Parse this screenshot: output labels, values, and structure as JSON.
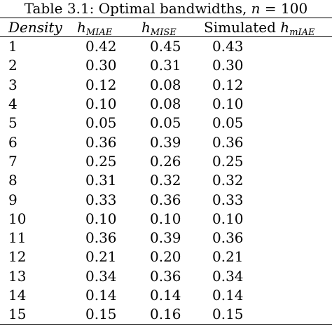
{
  "caption": {
    "prefix": "Table 3.1: Optimal bandwidths, ",
    "n_var": "n",
    "suffix": " = 100"
  },
  "headers": {
    "density": "Density",
    "h_miae_base": "h",
    "h_miae_sub": "MIAE",
    "h_mise_base": "h",
    "h_mise_sub": "MISE",
    "sim_prefix": "Simulated ",
    "sim_base": "h",
    "sim_sub": "mIAE"
  },
  "rows": [
    {
      "density": "1",
      "h_miae": "0.42",
      "h_mise": "0.45",
      "sim_h_miae": "0.43"
    },
    {
      "density": "2",
      "h_miae": "0.30",
      "h_mise": "0.31",
      "sim_h_miae": "0.30"
    },
    {
      "density": "3",
      "h_miae": "0.12",
      "h_mise": "0.08",
      "sim_h_miae": "0.12"
    },
    {
      "density": "4",
      "h_miae": "0.10",
      "h_mise": "0.08",
      "sim_h_miae": "0.10"
    },
    {
      "density": "5",
      "h_miae": "0.05",
      "h_mise": "0.05",
      "sim_h_miae": "0.05"
    },
    {
      "density": "6",
      "h_miae": "0.36",
      "h_mise": "0.39",
      "sim_h_miae": "0.36"
    },
    {
      "density": "7",
      "h_miae": "0.25",
      "h_mise": "0.26",
      "sim_h_miae": "0.25"
    },
    {
      "density": "8",
      "h_miae": "0.31",
      "h_mise": "0.32",
      "sim_h_miae": "0.32"
    },
    {
      "density": "9",
      "h_miae": "0.33",
      "h_mise": "0.36",
      "sim_h_miae": "0.33"
    },
    {
      "density": "10",
      "h_miae": "0.10",
      "h_mise": "0.10",
      "sim_h_miae": "0.10"
    },
    {
      "density": "11",
      "h_miae": "0.36",
      "h_mise": "0.39",
      "sim_h_miae": "0.36"
    },
    {
      "density": "12",
      "h_miae": "0.21",
      "h_mise": "0.20",
      "sim_h_miae": "0.21"
    },
    {
      "density": "13",
      "h_miae": "0.34",
      "h_mise": "0.36",
      "sim_h_miae": "0.34"
    },
    {
      "density": "14",
      "h_miae": "0.14",
      "h_mise": "0.14",
      "sim_h_miae": "0.14"
    },
    {
      "density": "15",
      "h_miae": "0.15",
      "h_mise": "0.16",
      "sim_h_miae": "0.15"
    }
  ]
}
